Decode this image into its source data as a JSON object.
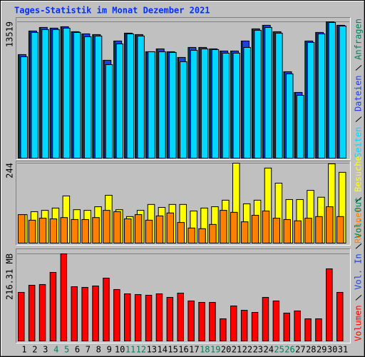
{
  "chart_data": {
    "type": "bar",
    "title": "Tages-Statistik im Monat Dezember 2021",
    "categories": [
      "1",
      "2",
      "3",
      "4",
      "5",
      "6",
      "7",
      "8",
      "9",
      "10",
      "11",
      "12",
      "13",
      "14",
      "15",
      "16",
      "17",
      "18",
      "19",
      "20",
      "21",
      "22",
      "23",
      "24",
      "25",
      "26",
      "27",
      "28",
      "29",
      "30",
      "31"
    ],
    "category_colors": [
      "#000000",
      "#000000",
      "#000000",
      "#00805c",
      "#00805c",
      "#000000",
      "#000000",
      "#000000",
      "#000000",
      "#000000",
      "#00805c",
      "#00805c",
      "#000000",
      "#000000",
      "#000000",
      "#000000",
      "#000000",
      "#00805c",
      "#00805c",
      "#000000",
      "#000000",
      "#000000",
      "#000000",
      "#000000",
      "#00805c",
      "#00805c",
      "#000000",
      "#000000",
      "#000000",
      "#000000",
      "#000000"
    ],
    "grid": true,
    "panels": [
      {
        "ylim": [
          0,
          13519
        ],
        "yticks": [
          13519
        ],
        "series": [
          {
            "name": "Anfragen",
            "color": "#00805c",
            "values": [
              10266,
              12602,
              12956,
              12886,
              13027,
              12532,
              12319,
              12248,
              9700,
              11611,
              12390,
              12248,
              10549,
              10832,
              10549,
              9983,
              10974,
              10974,
              10832,
              10620,
              10620,
              11611,
              12815,
              13169,
              12532,
              8567,
              6514,
              11611,
              12461,
              13519,
              13169
            ]
          },
          {
            "name": "Dateien",
            "color": "#2040e0",
            "values": [
              10266,
              12602,
              12956,
              12886,
              13027,
              12532,
              12319,
              12248,
              9700,
              11611,
              12390,
              12248,
              10549,
              10832,
              10549,
              9983,
              10974,
              10974,
              10832,
              10620,
              10620,
              11611,
              12815,
              13169,
              12532,
              8567,
              6514,
              11611,
              12461,
              13519,
              13169
            ]
          },
          {
            "name": "Seiten",
            "color": "#00d8ff",
            "values": [
              10054,
              12461,
              12744,
              12744,
              12886,
              12461,
              12036,
              12107,
              9275,
              11328,
              12319,
              12107,
              10549,
              10549,
              10478,
              9558,
              10691,
              10832,
              10762,
              10408,
              10408,
              10974,
              12673,
              12956,
              12390,
              8354,
              6230,
              11470,
              12319,
              13452,
              13098
            ]
          }
        ]
      },
      {
        "ylim": [
          0,
          244
        ],
        "yticks": [
          244
        ],
        "series": [
          {
            "name": "Besuche",
            "color": "#ffff00",
            "values": [
              87,
              96,
              100,
              107,
              144,
              102,
              100,
              111,
              146,
              102,
              81,
              100,
              118,
              109,
              118,
              118,
              98,
              107,
              111,
              131,
              244,
              120,
              131,
              229,
              183,
              133,
              133,
              161,
              140,
              242,
              216
            ]
          },
          {
            "name": "Rechner",
            "color": "#ff8000",
            "values": [
              87,
              70,
              76,
              74,
              78,
              72,
              72,
              78,
              100,
              96,
              74,
              87,
              70,
              83,
              92,
              63,
              46,
              44,
              57,
              100,
              94,
              65,
              85,
              98,
              76,
              72,
              68,
              76,
              81,
              111,
              81
            ]
          }
        ]
      },
      {
        "ylim": [
          0,
          216.31
        ],
        "yticks": [
          {
            "value": 216.31,
            "label": "216.31 MB"
          }
        ],
        "legend_only": [
          {
            "name": "Vol. Out",
            "color": "#00805c"
          },
          {
            "name": "Vol. In",
            "color": "#2040e0"
          }
        ],
        "series": [
          {
            "name": "Volumen",
            "color": "#ff0000",
            "values": [
              120.6,
              138.3,
              140.1,
              170.2,
              216.31,
              134.7,
              133.0,
              136.5,
              156.0,
              127.7,
              117.0,
              115.2,
              113.5,
              117.0,
              108.2,
              118.8,
              99.3,
              95.7,
              95.7,
              55.0,
              86.9,
              76.2,
              70.9,
              108.2,
              99.3,
              69.1,
              74.5,
              55.0,
              55.0,
              179.1,
              120.6
            ]
          }
        ]
      }
    ]
  }
}
